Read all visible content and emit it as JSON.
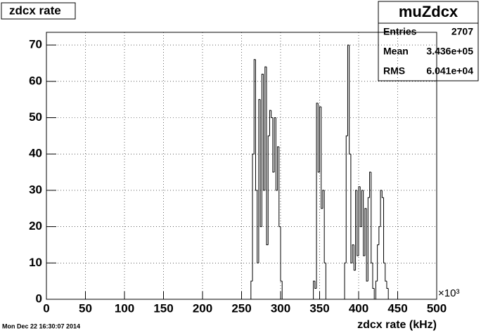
{
  "chart_data": {
    "type": "histogram",
    "title": "zdcx rate",
    "x_label": "zdcx rate (kHz)",
    "x_multiplier": "×10³",
    "timestamp": "Mon Dec 22 16:30:07 2014",
    "stats": {
      "name": "muZdcx",
      "rows": [
        [
          "Entries",
          "2707"
        ],
        [
          "Mean",
          "3.436e+05"
        ],
        [
          "RMS",
          "6.041e+04"
        ]
      ]
    },
    "bins": [
      256,
      258,
      260,
      262,
      264,
      266,
      268,
      270,
      272,
      274,
      276,
      278,
      280,
      282,
      284,
      286,
      288,
      290,
      292,
      294,
      296,
      298,
      300,
      302,
      304,
      306,
      308,
      310,
      312,
      314,
      316,
      318,
      320,
      322,
      324,
      326,
      328,
      330,
      332,
      334,
      336,
      338,
      340,
      342,
      344,
      346,
      348,
      350,
      352,
      354,
      356,
      358,
      360,
      362,
      364,
      366,
      368,
      370,
      372,
      374,
      376,
      378,
      380,
      382,
      384,
      386,
      388,
      390,
      392,
      394,
      396,
      398,
      400,
      402,
      404,
      406,
      408,
      410,
      412,
      414,
      416,
      418,
      420,
      422,
      424,
      426,
      428,
      430,
      432,
      434,
      436,
      438,
      440,
      442,
      444,
      446,
      448,
      450,
      452,
      454,
      456
    ],
    "values": [
      0,
      0,
      0,
      5,
      40,
      66,
      30,
      10,
      55,
      20,
      62,
      30,
      64,
      15,
      45,
      52,
      50,
      35,
      50,
      30,
      42,
      20,
      5,
      0,
      0,
      0,
      0,
      0,
      0,
      0,
      0,
      0,
      0,
      0,
      0,
      0,
      0,
      0,
      0,
      0,
      0,
      0,
      0,
      5,
      3,
      54,
      35,
      53,
      25,
      30,
      10,
      0,
      0,
      0,
      0,
      0,
      0,
      0,
      0,
      0,
      0,
      0,
      0,
      10,
      45,
      70,
      40,
      10,
      15,
      8,
      30,
      12,
      31,
      20,
      30,
      12,
      25,
      5,
      28,
      35,
      10,
      3,
      0,
      5,
      15,
      20,
      30,
      28,
      10,
      5,
      3,
      0,
      0,
      0,
      0,
      0,
      0,
      0,
      0,
      0
    ],
    "color": "#000000",
    "xlim": [
      0,
      500
    ],
    "xticks": [
      0,
      50,
      100,
      150,
      200,
      250,
      300,
      350,
      400,
      450,
      500
    ],
    "ylim": [
      0,
      73.5
    ],
    "yticks": [
      0,
      10,
      20,
      30,
      40,
      50,
      60,
      70
    ],
    "grid": true
  }
}
